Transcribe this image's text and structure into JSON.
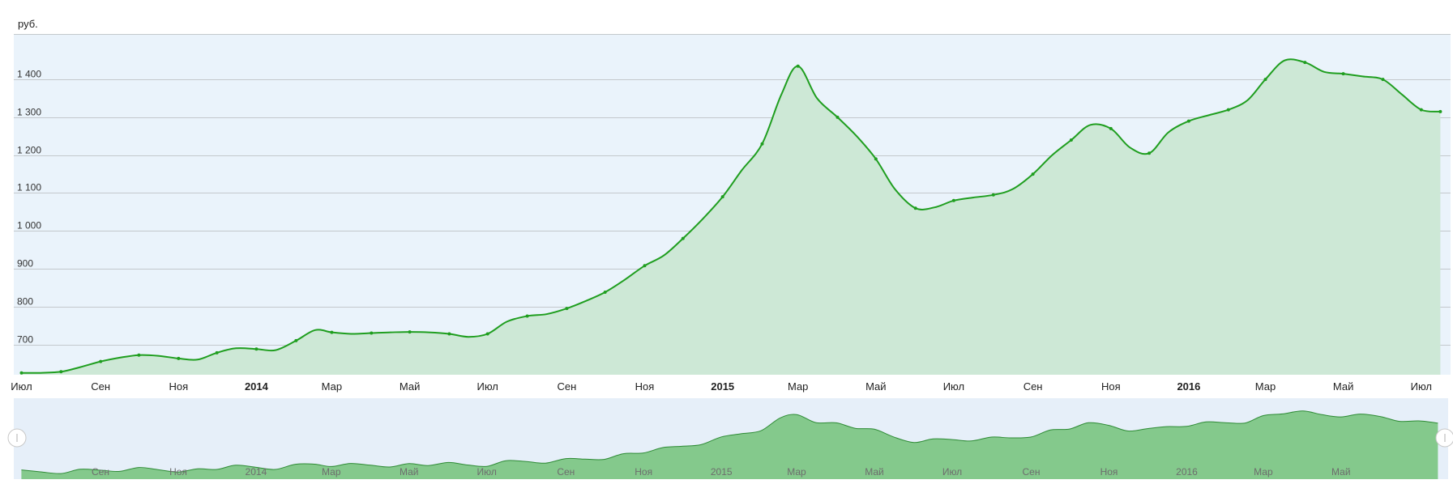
{
  "chart_data": {
    "type": "area",
    "title": "",
    "ylabel": "руб.",
    "xlabel": "",
    "ylim": [
      620,
      1520
    ],
    "yticks": [
      700,
      800,
      900,
      1000,
      1100,
      1200,
      1300,
      1400
    ],
    "ytick_labels": [
      "700",
      "800",
      "900",
      "1 000",
      "1 100",
      "1 200",
      "1 300",
      "1 400"
    ],
    "xlim": [
      "2013-06-25",
      "2016-07-24"
    ],
    "xticks": [
      {
        "date": "2013-07-01",
        "label": "Июл",
        "bold": false
      },
      {
        "date": "2013-09-01",
        "label": "Сен",
        "bold": false
      },
      {
        "date": "2013-11-01",
        "label": "Ноя",
        "bold": false
      },
      {
        "date": "2014-01-01",
        "label": "2014",
        "bold": true
      },
      {
        "date": "2014-03-01",
        "label": "Мар",
        "bold": false
      },
      {
        "date": "2014-05-01",
        "label": "Май",
        "bold": false
      },
      {
        "date": "2014-07-01",
        "label": "Июл",
        "bold": false
      },
      {
        "date": "2014-09-01",
        "label": "Сен",
        "bold": false
      },
      {
        "date": "2014-11-01",
        "label": "Ноя",
        "bold": false
      },
      {
        "date": "2015-01-01",
        "label": "2015",
        "bold": true
      },
      {
        "date": "2015-03-01",
        "label": "Мар",
        "bold": false
      },
      {
        "date": "2015-05-01",
        "label": "Май",
        "bold": false
      },
      {
        "date": "2015-07-01",
        "label": "Июл",
        "bold": false
      },
      {
        "date": "2015-09-01",
        "label": "Сен",
        "bold": false
      },
      {
        "date": "2015-11-01",
        "label": "Ноя",
        "bold": false
      },
      {
        "date": "2016-01-01",
        "label": "2016",
        "bold": true
      },
      {
        "date": "2016-03-01",
        "label": "Мар",
        "bold": false
      },
      {
        "date": "2016-05-01",
        "label": "Май",
        "bold": false
      },
      {
        "date": "2016-07-01",
        "label": "Июл",
        "bold": false
      }
    ],
    "navigator_ticks": [
      {
        "date": "2013-09-01",
        "label": "Сен"
      },
      {
        "date": "2013-11-01",
        "label": "Ноя"
      },
      {
        "date": "2014-01-01",
        "label": "2014"
      },
      {
        "date": "2014-03-01",
        "label": "Мар"
      },
      {
        "date": "2014-05-01",
        "label": "Май"
      },
      {
        "date": "2014-07-01",
        "label": "Июл"
      },
      {
        "date": "2014-09-01",
        "label": "Сен"
      },
      {
        "date": "2014-11-01",
        "label": "Ноя"
      },
      {
        "date": "2015-01-01",
        "label": "2015"
      },
      {
        "date": "2015-03-01",
        "label": "Мар"
      },
      {
        "date": "2015-05-01",
        "label": "Май"
      },
      {
        "date": "2015-07-01",
        "label": "Июл"
      },
      {
        "date": "2015-09-01",
        "label": "Сен"
      },
      {
        "date": "2015-11-01",
        "label": "Ноя"
      },
      {
        "date": "2016-01-01",
        "label": "2016"
      },
      {
        "date": "2016-03-01",
        "label": "Мар"
      },
      {
        "date": "2016-05-01",
        "label": "Май"
      }
    ],
    "grid": true,
    "legend": "none",
    "colors": {
      "line": "#1f9e1f",
      "area": "#cde8d6",
      "plot_bg": "#eaf3fb",
      "grid": "#c3c8cc",
      "navigator_area": "#84c98c",
      "navigator_line": "#2e8b35",
      "navigator_bg": "#e6eff9"
    },
    "series": [
      {
        "x": [
          "2013-07-01",
          "2013-07-16",
          "2013-08-01",
          "2013-08-16",
          "2013-09-01",
          "2013-09-16",
          "2013-10-01",
          "2013-10-16",
          "2013-11-01",
          "2013-11-16",
          "2013-12-01",
          "2013-12-16",
          "2014-01-01",
          "2014-01-16",
          "2014-02-01",
          "2014-02-16",
          "2014-03-01",
          "2014-03-16",
          "2014-04-01",
          "2014-04-16",
          "2014-05-01",
          "2014-05-16",
          "2014-06-01",
          "2014-06-16",
          "2014-07-01",
          "2014-07-16",
          "2014-08-01",
          "2014-08-16",
          "2014-09-01",
          "2014-09-16",
          "2014-10-01",
          "2014-10-16",
          "2014-11-01",
          "2014-11-16",
          "2014-12-01",
          "2014-12-16",
          "2015-01-01",
          "2015-01-16",
          "2015-02-01",
          "2015-02-16",
          "2015-03-01",
          "2015-03-16",
          "2015-04-01",
          "2015-04-16",
          "2015-05-01",
          "2015-05-16",
          "2015-06-01",
          "2015-06-16",
          "2015-07-01",
          "2015-07-16",
          "2015-08-01",
          "2015-08-16",
          "2015-09-01",
          "2015-09-16",
          "2015-10-01",
          "2015-10-16",
          "2015-11-01",
          "2015-11-16",
          "2015-12-01",
          "2015-12-16",
          "2016-01-01",
          "2016-01-16",
          "2016-02-01",
          "2016-02-16",
          "2016-03-01",
          "2016-03-16",
          "2016-04-01",
          "2016-04-16",
          "2016-05-01",
          "2016-05-16",
          "2016-06-01",
          "2016-06-16",
          "2016-07-01",
          "2016-07-16"
        ],
        "values": [
          625,
          625,
          628,
          640,
          655,
          665,
          672,
          670,
          663,
          660,
          678,
          690,
          688,
          685,
          710,
          738,
          732,
          728,
          730,
          732,
          733,
          732,
          728,
          720,
          728,
          760,
          775,
          780,
          795,
          815,
          838,
          870,
          908,
          935,
          980,
          1030,
          1090,
          1160,
          1230,
          1360,
          1435,
          1350,
          1300,
          1250,
          1190,
          1110,
          1060,
          1062,
          1080,
          1088,
          1095,
          1110,
          1150,
          1200,
          1240,
          1280,
          1270,
          1220,
          1205,
          1260,
          1290,
          1305,
          1320,
          1345,
          1400,
          1450,
          1445,
          1420,
          1415,
          1408,
          1400,
          1360,
          1320,
          1315
        ]
      }
    ]
  }
}
